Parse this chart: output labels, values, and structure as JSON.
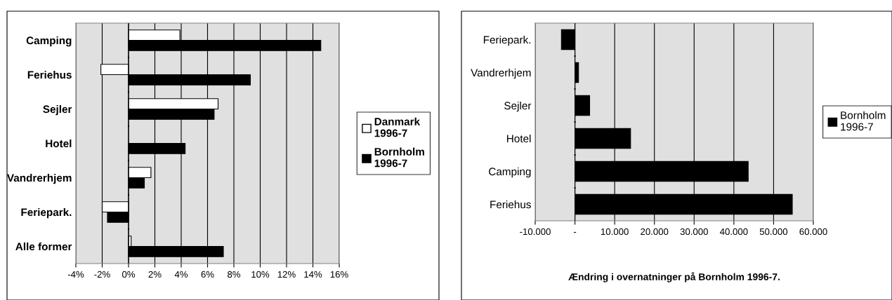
{
  "chart_data": [
    {
      "type": "bar",
      "orientation": "horizontal",
      "categories": [
        "Camping",
        "Feriehus",
        "Sejler",
        "Hotel",
        "Vandrerhjem",
        "Feriepark.",
        "Alle former"
      ],
      "series": [
        {
          "name": "Danmark\n1996-7",
          "color": "#ffffff",
          "values": [
            3.9,
            -2.1,
            6.8,
            null,
            1.7,
            -2.0,
            0.2
          ]
        },
        {
          "name": "Bornholm\n1996-7",
          "color": "#000000",
          "values": [
            14.6,
            9.25,
            6.5,
            4.3,
            1.2,
            -1.6,
            7.2
          ]
        }
      ],
      "xlim": [
        -4,
        16
      ],
      "xticks": [
        {
          "value": -4,
          "label": "-4%"
        },
        {
          "value": -2,
          "label": "-2%"
        },
        {
          "value": 0,
          "label": "0%"
        },
        {
          "value": 2,
          "label": "2%"
        },
        {
          "value": 4,
          "label": "4%"
        },
        {
          "value": 6,
          "label": "6%"
        },
        {
          "value": 8,
          "label": "8%"
        },
        {
          "value": 10,
          "label": "10%"
        },
        {
          "value": 12,
          "label": "12%"
        },
        {
          "value": 14,
          "label": "14%"
        },
        {
          "value": 16,
          "label": "16%"
        }
      ],
      "grid": "x",
      "legend": "right"
    },
    {
      "type": "bar",
      "orientation": "horizontal",
      "title": "Ændring i overnatninger på Bornholm 1996-7.",
      "categories": [
        "Feriepark.",
        "Vandrerhjem",
        "Sejler",
        "Hotel",
        "Camping",
        "Feriehus"
      ],
      "series": [
        {
          "name": "Bornholm\n1996-7",
          "color": "#000000",
          "values": [
            -3400,
            900,
            3700,
            14000,
            43600,
            54700
          ]
        }
      ],
      "xlim": [
        -10000,
        60000
      ],
      "xticks": [
        {
          "value": -10000,
          "label": "-10.000"
        },
        {
          "value": 0,
          "label": "-"
        },
        {
          "value": 10000,
          "label": "10.000"
        },
        {
          "value": 20000,
          "label": "20.000"
        },
        {
          "value": 30000,
          "label": "30.000"
        },
        {
          "value": 40000,
          "label": "40.000"
        },
        {
          "value": 50000,
          "label": "50.000"
        },
        {
          "value": 60000,
          "label": "60.000"
        }
      ],
      "grid": "x",
      "legend": "right"
    }
  ]
}
